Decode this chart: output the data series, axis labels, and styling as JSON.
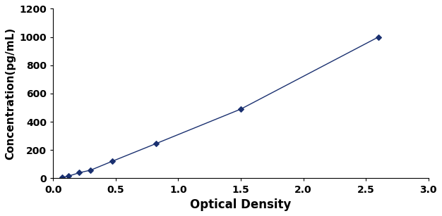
{
  "x": [
    0.07,
    0.12,
    0.21,
    0.3,
    0.47,
    0.82,
    1.5,
    2.6
  ],
  "y": [
    7,
    15,
    40,
    58,
    120,
    245,
    490,
    1000
  ],
  "line_color": "#1a3070",
  "marker_color": "#1a3070",
  "marker": "D",
  "marker_size": 4,
  "line_style": "-",
  "line_width": 1.0,
  "xlabel": "Optical Density",
  "ylabel": "Concentration(pg/mL)",
  "xlim": [
    0,
    3
  ],
  "ylim": [
    0,
    1200
  ],
  "xticks": [
    0,
    0.5,
    1,
    1.5,
    2,
    2.5,
    3
  ],
  "yticks": [
    0,
    200,
    400,
    600,
    800,
    1000,
    1200
  ],
  "xlabel_fontsize": 12,
  "ylabel_fontsize": 11,
  "tick_fontsize": 10,
  "label_fontweight": "bold"
}
